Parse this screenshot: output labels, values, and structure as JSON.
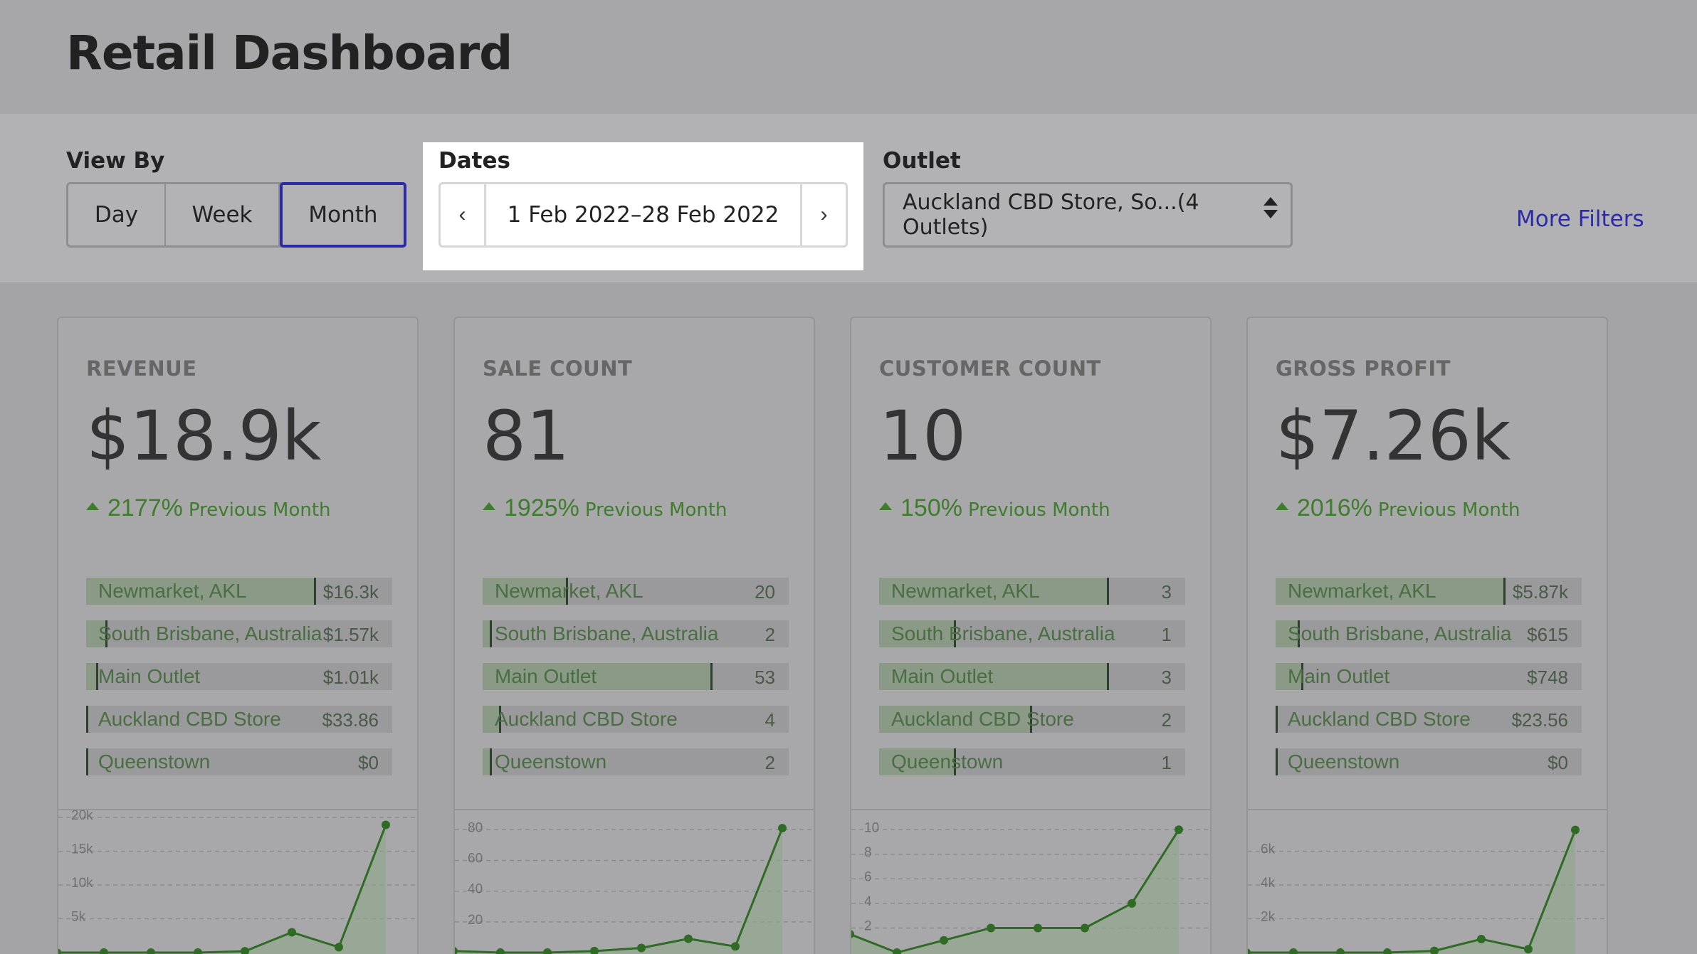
{
  "header": {
    "title": "Retail Dashboard"
  },
  "filters": {
    "view_by": {
      "label": "View By",
      "options": [
        "Day",
        "Week",
        "Month"
      ],
      "selected": "Month"
    },
    "dates": {
      "label": "Dates",
      "range": "1 Feb 2022–28 Feb 2022",
      "prev_icon": "chevron-left-icon",
      "next_icon": "chevron-right-icon"
    },
    "outlet": {
      "label": "Outlet",
      "value": "Auckland CBD Store, So...(4 Outlets)"
    },
    "more_filters": "More Filters"
  },
  "colors": {
    "accent": "#2b2ba8",
    "positive": "#3e7d2c",
    "highlight": "#ffffff"
  },
  "cards": [
    {
      "title": "REVENUE",
      "value": "$18.9k",
      "change": "2177%",
      "change_label": "Previous Month",
      "rows": [
        {
          "label": "Newmarket, AKL",
          "value": "$16.3k",
          "share": 0.75
        },
        {
          "label": "South Brisbane, Australia",
          "value": "$1.57k",
          "share": 0.07
        },
        {
          "label": "Main Outlet",
          "value": "$1.01k",
          "share": 0.04
        },
        {
          "label": "Auckland CBD Store",
          "value": "$33.86",
          "share": 0.005
        },
        {
          "label": "Queenstown",
          "value": "$0",
          "share": 0.0
        }
      ],
      "chart": {
        "ymax": 20000,
        "ticks": [
          [
            "20k",
            20000
          ],
          [
            "15k",
            15000
          ],
          [
            "10k",
            10000
          ],
          [
            "5k",
            5000
          ]
        ],
        "points": [
          0,
          0,
          0,
          0,
          200,
          3000,
          800,
          18900
        ]
      }
    },
    {
      "title": "SALE COUNT",
      "value": "81",
      "change": "1925%",
      "change_label": "Previous Month",
      "rows": [
        {
          "label": "Newmarket, AKL",
          "value": "20",
          "share": 0.28
        },
        {
          "label": "South Brisbane, Australia",
          "value": "2",
          "share": 0.03
        },
        {
          "label": "Main Outlet",
          "value": "53",
          "share": 0.75
        },
        {
          "label": "Auckland CBD Store",
          "value": "4",
          "share": 0.06
        },
        {
          "label": "Queenstown",
          "value": "2",
          "share": 0.03
        }
      ],
      "chart": {
        "ymax": 88,
        "ticks": [
          [
            "80",
            80
          ],
          [
            "60",
            60
          ],
          [
            "40",
            40
          ],
          [
            "20",
            20
          ]
        ],
        "points": [
          1,
          0,
          0,
          1,
          3,
          9,
          4,
          81
        ]
      }
    },
    {
      "title": "CUSTOMER COUNT",
      "value": "10",
      "change": "150%",
      "change_label": "Previous Month",
      "rows": [
        {
          "label": "Newmarket, AKL",
          "value": "3",
          "share": 0.75
        },
        {
          "label": "South Brisbane, Australia",
          "value": "1",
          "share": 0.25
        },
        {
          "label": "Main Outlet",
          "value": "3",
          "share": 0.75
        },
        {
          "label": "Auckland CBD Store",
          "value": "2",
          "share": 0.5
        },
        {
          "label": "Queenstown",
          "value": "1",
          "share": 0.25
        }
      ],
      "chart": {
        "ymax": 11,
        "ticks": [
          [
            "10",
            10
          ],
          [
            "8",
            8
          ],
          [
            "6",
            6
          ],
          [
            "4",
            4
          ],
          [
            "2",
            2
          ]
        ],
        "points": [
          1.5,
          0,
          1,
          2,
          2,
          2,
          4,
          10
        ]
      }
    },
    {
      "title": "GROSS PROFIT",
      "value": "$7.26k",
      "change": "2016%",
      "change_label": "Previous Month",
      "rows": [
        {
          "label": "Newmarket, AKL",
          "value": "$5.87k",
          "share": 0.75
        },
        {
          "label": "South Brisbane, Australia",
          "value": "$615",
          "share": 0.08
        },
        {
          "label": "Main Outlet",
          "value": "$748",
          "share": 0.09
        },
        {
          "label": "Auckland CBD Store",
          "value": "$23.56",
          "share": 0.005
        },
        {
          "label": "Queenstown",
          "value": "$0",
          "share": 0.0
        }
      ],
      "chart": {
        "ymax": 8000,
        "ticks": [
          [
            "6k",
            6000
          ],
          [
            "4k",
            4000
          ],
          [
            "2k",
            2000
          ]
        ],
        "points": [
          0,
          0,
          0,
          0,
          100,
          800,
          200,
          7260
        ]
      }
    }
  ]
}
